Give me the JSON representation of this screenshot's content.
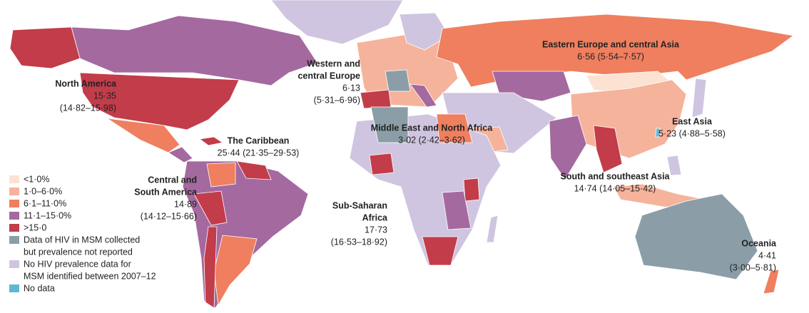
{
  "regions": [
    {
      "name": [
        "North America"
      ],
      "stats": [
        "15·35",
        "(14·82–15·98)"
      ]
    },
    {
      "name": [
        "Western and",
        "central Europe"
      ],
      "stats": [
        "6·13",
        "(5·31–6·96)"
      ]
    },
    {
      "name": [
        "Eastern Europe and central Asia"
      ],
      "stats": [
        "6·56 (5·54–7·57)"
      ]
    },
    {
      "name": [
        "East Asia"
      ],
      "stats": [
        "5·23 (4·88–5·58)"
      ]
    },
    {
      "name": [
        "The Caribbean"
      ],
      "stats": [
        "25·44 (21·35–29·53)"
      ]
    },
    {
      "name": [
        "Middle East and North Africa"
      ],
      "stats": [
        "3·02 (2·42–3·62)"
      ]
    },
    {
      "name": [
        "Central and",
        "South America"
      ],
      "stats": [
        "14·89",
        "(14·12–15·66)"
      ]
    },
    {
      "name": [
        "South and southeast Asia"
      ],
      "stats": [
        "14·74 (14·05–15·42)"
      ]
    },
    {
      "name": [
        "Sub-Saharan",
        "Africa"
      ],
      "stats": [
        "17·73",
        "(16·53–18·92)"
      ]
    },
    {
      "name": [
        "Oceania"
      ],
      "stats": [
        "4·41",
        "(3·00–5·81)"
      ]
    }
  ],
  "legend": [
    {
      "label": [
        "<1·0%"
      ],
      "color": "#fce2d3"
    },
    {
      "label": [
        "1·0–6·0%"
      ],
      "color": "#f6b39b"
    },
    {
      "label": [
        "6·1–11·0%"
      ],
      "color": "#ef7f5f"
    },
    {
      "label": [
        "11·1–15·0%"
      ],
      "color": "#a4699f"
    },
    {
      "label": [
        ">15·0"
      ],
      "color": "#c23c4a"
    },
    {
      "label": [
        "Data of HIV in MSM collected",
        "but prevalence not reported"
      ],
      "color": "#8b9ea8"
    },
    {
      "label": [
        "No HIV prevalence data for",
        "MSM identified between 2007–12"
      ],
      "color": "#d0c5e0"
    },
    {
      "label": [
        "No data"
      ],
      "color": "#5db7d6"
    }
  ]
}
